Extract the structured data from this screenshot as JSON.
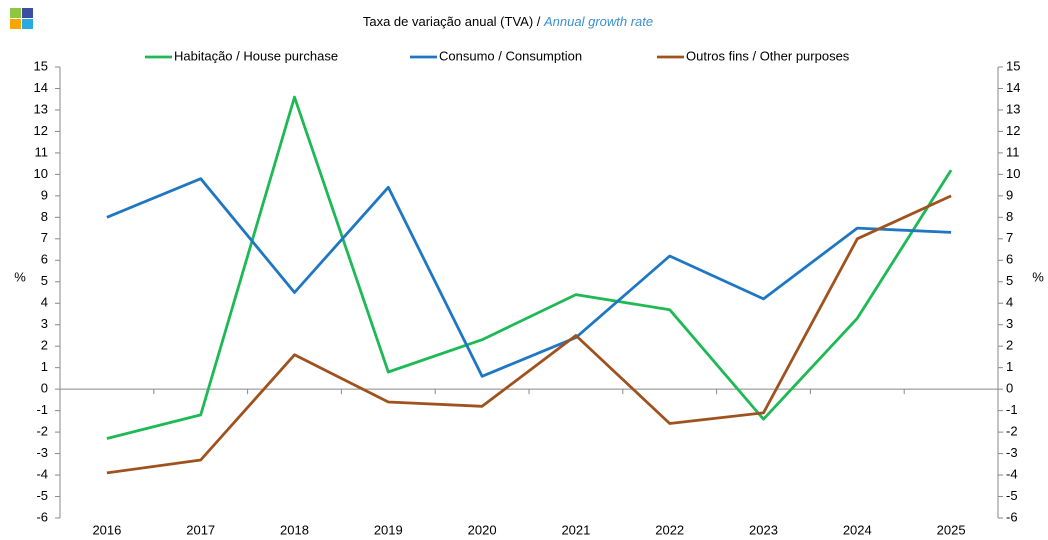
{
  "chart_data": {
    "type": "line",
    "subtitle": "Taxa de variação anual (TVA) /",
    "subtitle_en": "Annual growth rate",
    "ylabel": "%",
    "y2label": "%",
    "categories": [
      "2016",
      "2017",
      "2018",
      "2019",
      "2020",
      "2021",
      "2022",
      "2023",
      "2024",
      "2025"
    ],
    "series": [
      {
        "name": "Habitação / House purchase",
        "color": "#1db954",
        "values": [
          -2.3,
          -1.2,
          13.6,
          0.8,
          2.3,
          4.4,
          3.7,
          -1.4,
          3.3,
          10.2
        ]
      },
      {
        "name": "Consumo / Consumption",
        "color": "#1f77c4",
        "values": [
          8.0,
          9.8,
          4.5,
          9.4,
          0.6,
          2.4,
          6.2,
          4.2,
          7.5,
          7.3
        ]
      },
      {
        "name": "Outros fins / Other purposes",
        "color": "#a0521e",
        "values": [
          -3.9,
          -3.3,
          1.6,
          -0.6,
          -0.8,
          2.5,
          -1.6,
          -1.1,
          7.0,
          9.0
        ]
      }
    ],
    "ylim": [
      -6,
      15
    ],
    "yticks": [
      -6,
      -5,
      -4,
      -3,
      -2,
      -1,
      0,
      1,
      2,
      3,
      4,
      5,
      6,
      7,
      8,
      9,
      10,
      11,
      12,
      13,
      14,
      15
    ],
    "y2lim": [
      -6,
      15
    ],
    "y2ticks": [
      -6,
      -5,
      -4,
      -3,
      -2,
      -1,
      0,
      1,
      2,
      3,
      4,
      5,
      6,
      7,
      8,
      9,
      10,
      11,
      12,
      13,
      14,
      15
    ],
    "legend": "top"
  }
}
